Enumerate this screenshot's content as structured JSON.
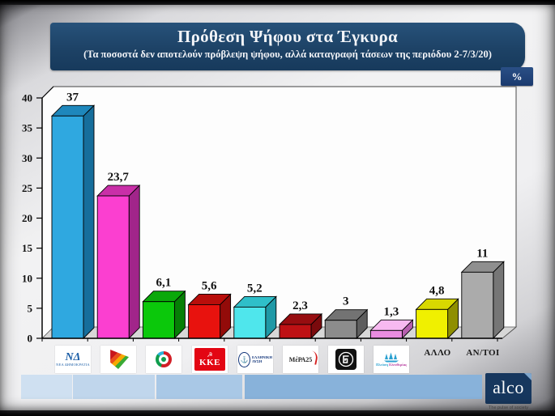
{
  "header": {
    "title": "Πρόθεση Ψήφου στα Έγκυρα",
    "subtitle": "(Τα ποσοστά δεν αποτελούν πρόβλεψη ψήφου, αλλά καταγραφή τάσεων της περιόδου 2-7/3/20)",
    "unit_badge": "%"
  },
  "chart_data": {
    "type": "bar",
    "title": "Πρόθεση Ψήφου στα Έγκυρα",
    "xlabel": "",
    "ylabel": "",
    "ylim": [
      0,
      40
    ],
    "yticks": [
      0,
      5,
      10,
      15,
      20,
      25,
      30,
      35,
      40
    ],
    "grid": false,
    "legend": "none",
    "style": "3d-extruded-bars",
    "categories": [
      "ΝΕΑ ΔΗΜΟΚΡΑΤΙΑ",
      "ΣΥΡΙΖΑ",
      "ΚΙΝΗΜΑ ΑΛΛΑΓΗΣ",
      "ΚΚΕ",
      "ΕΛΛΗΝΙΚΗ ΛΥΣΗ",
      "ΜέΡΑ25",
      "ΧΡΥΣΗ ΑΥΓΗ",
      "ΠΛΕΥΣΗ ΕΛΕΥΘΕΡΙΑΣ",
      "ΑΛΛΟ",
      "ΑΝ/ΤΟΙ"
    ],
    "values": [
      37,
      23.7,
      6.1,
      5.6,
      5.2,
      2.3,
      3,
      1.3,
      4.8,
      11
    ],
    "value_labels": [
      "37",
      "23,7",
      "6,1",
      "5,6",
      "5,2",
      "2,3",
      "3",
      "1,3",
      "4,8",
      "11"
    ],
    "bar_colors": [
      {
        "front": "#2fa8e0",
        "top": "#1e87bc",
        "side": "#166e9c"
      },
      {
        "front": "#fb3fd0",
        "top": "#c92fa8",
        "side": "#a1258a"
      },
      {
        "front": "#0bc80b",
        "top": "#0aa80a",
        "side": "#067f06"
      },
      {
        "front": "#e8120e",
        "top": "#b90e0b",
        "side": "#930b09"
      },
      {
        "front": "#4fe6ec",
        "top": "#2fbfc9",
        "side": "#1f99a6"
      },
      {
        "front": "#be1114",
        "top": "#970d10",
        "side": "#7a0a0d"
      },
      {
        "front": "#8c8c8c",
        "top": "#737373",
        "side": "#5e5e5e"
      },
      {
        "front": "#e98ce0",
        "top": "#f7b9f0",
        "side": "#b65fae"
      },
      {
        "front": "#f0f000",
        "top": "#d8d800",
        "side": "#8f8f00"
      },
      {
        "front": "#ababab",
        "top": "#8f8f8f",
        "side": "#767676"
      }
    ]
  },
  "logos": {
    "nd_text": "ΝΔ",
    "nd_caption": "ΝΕΑ ΔΗΜΟΚΡΑΤΙΑ",
    "kke_symbol": "☭",
    "kke_text": "ΚΚΕ",
    "el_line1": "ΕΛΛΗΝΙΚΗ",
    "el_line2": "ΛΥΣΗ",
    "el_anchor": "⚓",
    "mera_text": "ΜέΡΑ25",
    "plefsi_line1": "Πλεύση",
    "plefsi_line2": "Ελευθερίας",
    "allo_label": "ΑΛΛΟ",
    "antoi_label": "ΑΝ/ΤΟΙ"
  },
  "footer": {
    "brand": "alco",
    "tagline": "The pulse of society"
  },
  "colors": {
    "title_bar": "#1d4266",
    "badge": "#1b3a6e",
    "strip_segments": [
      "#cfe0f1",
      "#c0d6ec",
      "#a9c8e6",
      "#88b2da"
    ],
    "alco_bg": "#17375e"
  }
}
